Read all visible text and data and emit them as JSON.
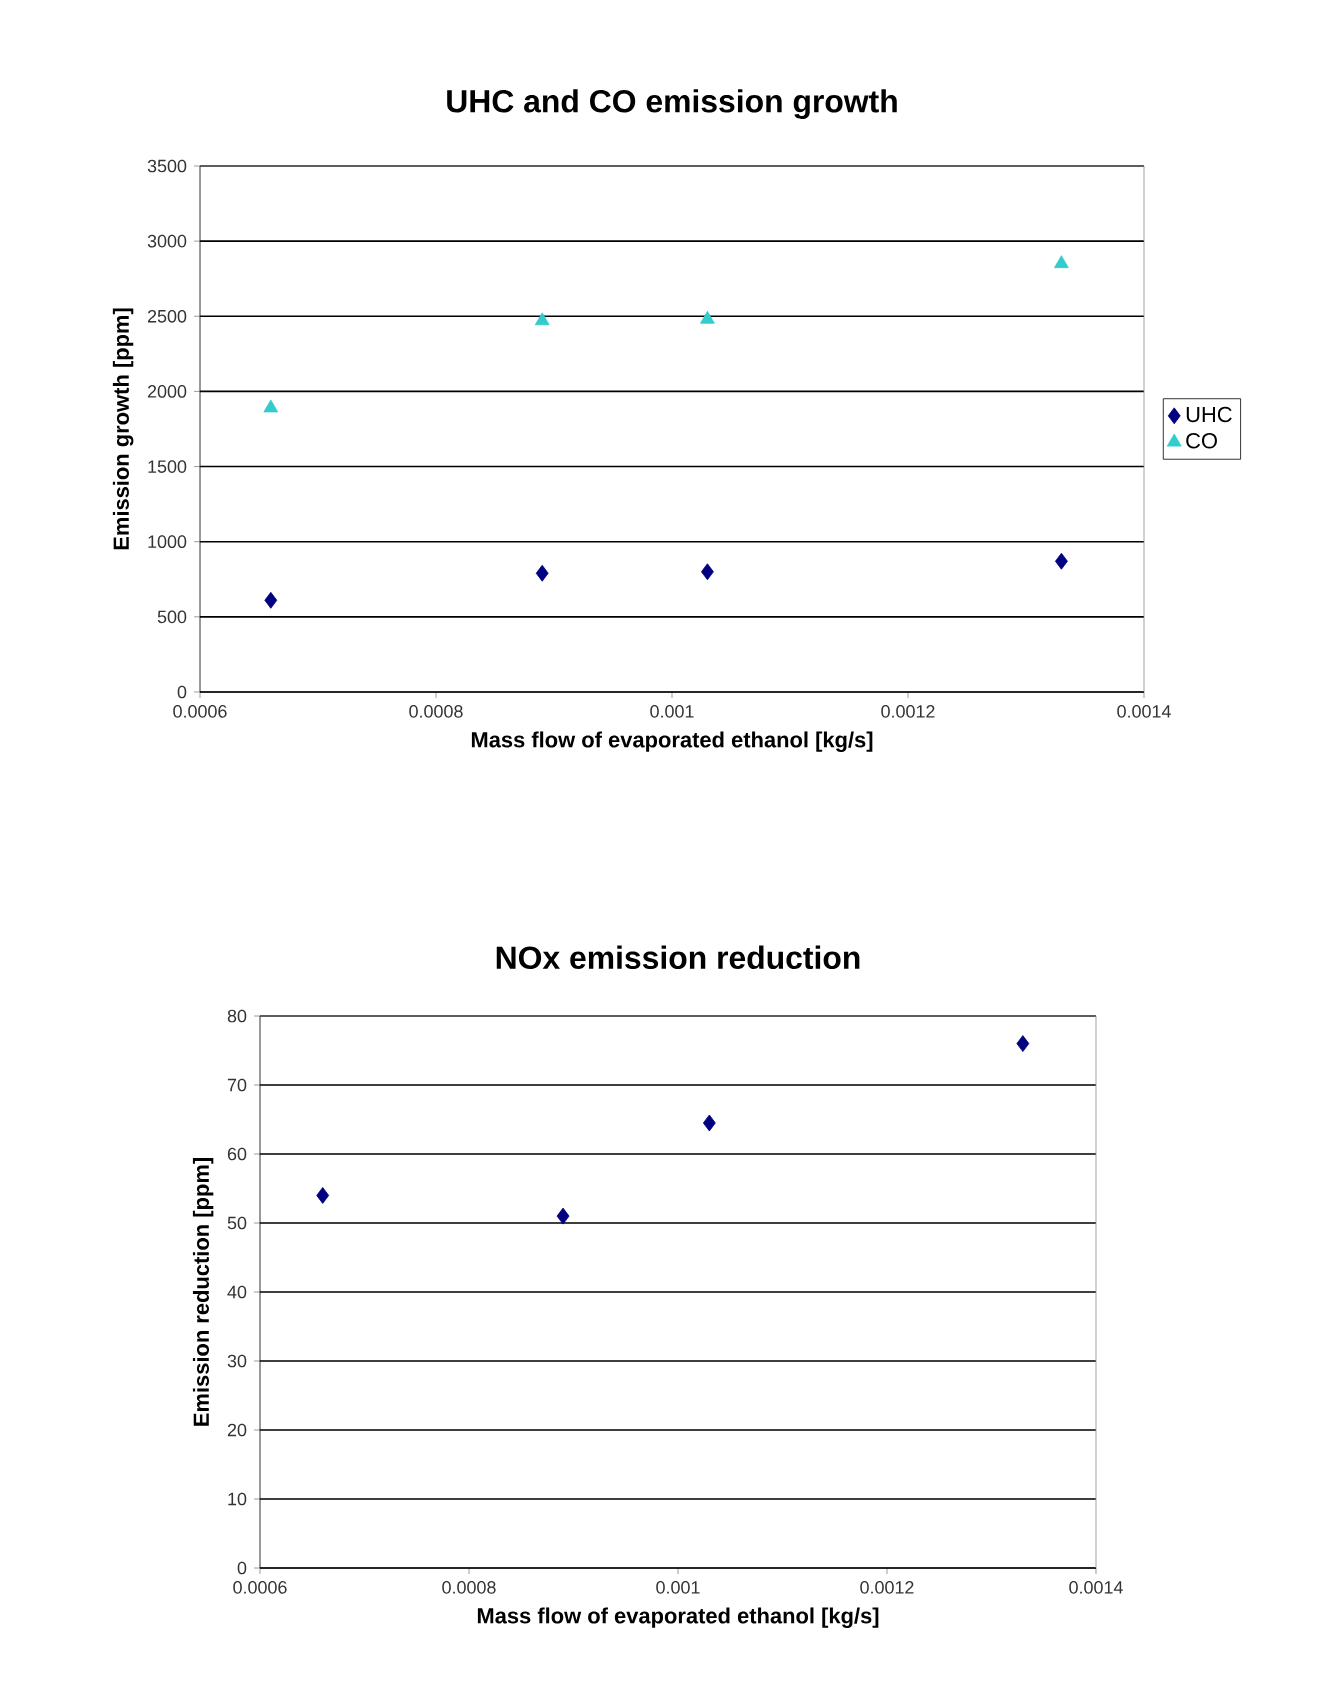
{
  "chart_data": [
    {
      "type": "scatter",
      "title": "UHC and CO emission growth",
      "xlabel": "Mass flow of evaporated ethanol [kg/s]",
      "ylabel": "Emission growth [ppm]",
      "xlim": [
        0.0006,
        0.0014
      ],
      "xticks": [
        0.0006,
        0.0008,
        0.001,
        0.0012,
        0.0014
      ],
      "ylim": [
        0,
        3500
      ],
      "yticks": [
        0,
        500,
        1000,
        1500,
        2000,
        2500,
        3000,
        3500
      ],
      "grid": "y",
      "legend": "right",
      "series": [
        {
          "name": "UHC",
          "color": "#000080",
          "marker": "diamond",
          "x": [
            0.00066,
            0.00089,
            0.00103,
            0.00133
          ],
          "values": [
            610,
            790,
            800,
            870
          ]
        },
        {
          "name": "CO",
          "color": "#33cccc",
          "marker": "triangle",
          "x": [
            0.00066,
            0.00089,
            0.00103,
            0.00133
          ],
          "values": [
            1890,
            2470,
            2480,
            2850
          ]
        }
      ]
    },
    {
      "type": "scatter",
      "title": "NOx emission reduction",
      "xlabel": "Mass flow of evaporated ethanol [kg/s]",
      "ylabel": "Emission reduction [ppm]",
      "xlim": [
        0.0006,
        0.0014
      ],
      "xticks": [
        0.0006,
        0.0008,
        0.001,
        0.0012,
        0.0014
      ],
      "ylim": [
        0,
        80
      ],
      "yticks": [
        0,
        10,
        20,
        30,
        40,
        50,
        60,
        70,
        80
      ],
      "grid": "y",
      "marker": "diamond",
      "color": "#000080",
      "x": [
        0.00066,
        0.00089,
        0.00103,
        0.00133
      ],
      "values": [
        54,
        51,
        64.5,
        76
      ]
    }
  ]
}
